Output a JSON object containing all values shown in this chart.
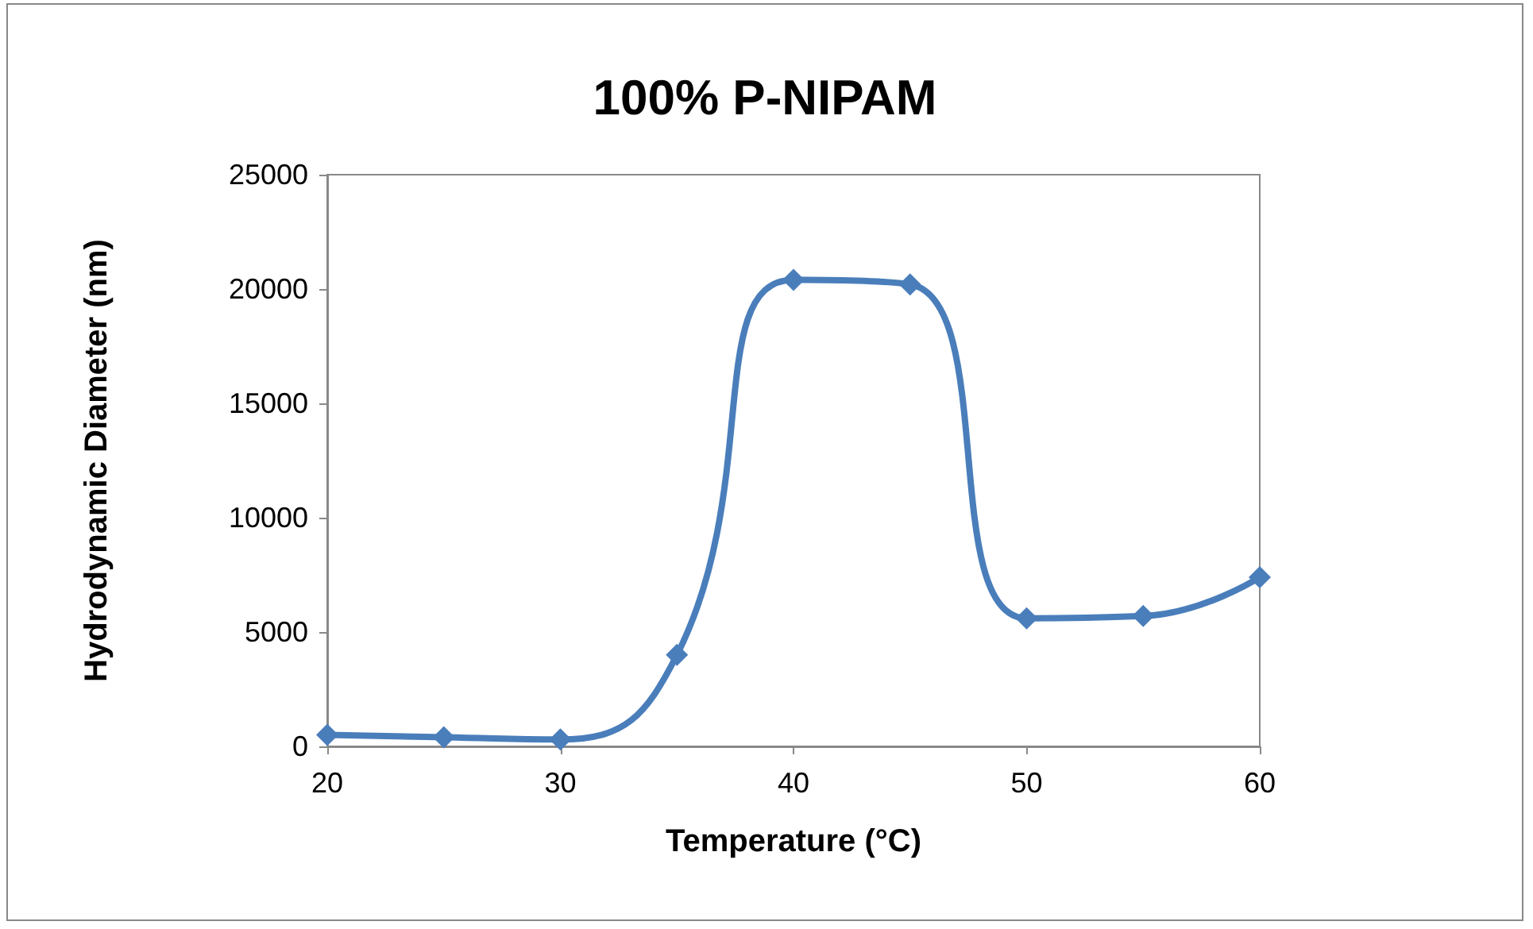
{
  "chart_data": {
    "type": "line",
    "title": "100% P-NIPAM",
    "xlabel": "Temperature (°C)",
    "ylabel": "Hydrodynamic Diameter (nm)",
    "x": [
      20,
      25,
      30,
      35,
      40,
      45,
      50,
      55,
      60
    ],
    "series": [
      {
        "color": "#4a7ebb",
        "values": [
          500,
          400,
          300,
          4000,
          20400,
          20200,
          5600,
          5700,
          7400
        ]
      }
    ],
    "xlim": [
      20,
      60
    ],
    "xticks": [
      20,
      30,
      40,
      50,
      60
    ],
    "ylim": [
      0,
      25000
    ],
    "yticks": [
      0,
      5000,
      10000,
      15000,
      20000,
      25000
    ],
    "grid": false,
    "marker": "diamond",
    "line_style": "solid"
  }
}
